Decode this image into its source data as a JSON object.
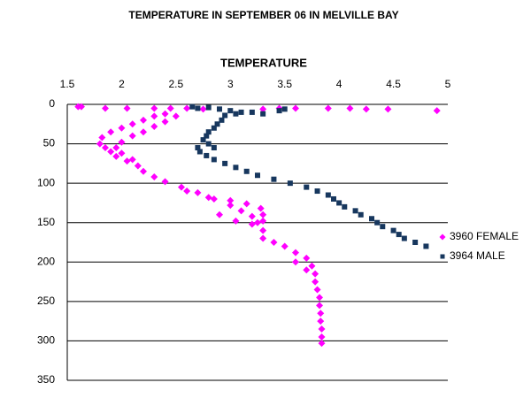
{
  "chart_data": {
    "type": "scatter",
    "title": "TEMPERATURE IN SEPTEMBER 06 IN MELVILLE BAY",
    "x_label": "TEMPERATURE",
    "xlim": [
      1.5,
      5
    ],
    "xticks": [
      1.5,
      2,
      2.5,
      3,
      3.5,
      4,
      4.5,
      5
    ],
    "ylim": [
      0,
      350
    ],
    "yticks": [
      0,
      50,
      100,
      150,
      200,
      250,
      300,
      350
    ],
    "y_inverted": true,
    "x_axis_position": "top",
    "grid": true,
    "legend": "right",
    "series": [
      {
        "name": "3960 FEMALE",
        "color": "#ff00ff",
        "marker": "diamond",
        "x": [
          1.6,
          1.63,
          1.85,
          2.05,
          2.3,
          2.45,
          2.6,
          2.75,
          3.3,
          3.45,
          3.6,
          3.9,
          4.1,
          4.25,
          4.45,
          4.9,
          2.4,
          2.3,
          2.2,
          2.1,
          2.0,
          1.9,
          1.82,
          1.8,
          1.85,
          2.5,
          2.4,
          2.3,
          2.2,
          2.1,
          2.0,
          1.95,
          2.0,
          2.1,
          2.15,
          2.2,
          2.3,
          2.4,
          2.55,
          2.7,
          2.85,
          3.0,
          3.1,
          3.2,
          3.25,
          3.3,
          3.3,
          3.4,
          3.5,
          3.6,
          3.7,
          3.75,
          3.78,
          3.78,
          3.8,
          3.82,
          3.82,
          3.83,
          3.83,
          3.84,
          3.84,
          3.84,
          2.6,
          2.8,
          3.0,
          3.15,
          3.28,
          3.3,
          3.3,
          3.2,
          3.05,
          2.9,
          1.9,
          1.95,
          2.05,
          3.6,
          3.7
        ],
        "values": [
          3,
          3,
          5,
          5,
          5,
          5,
          5,
          6,
          6,
          5,
          5,
          5,
          5,
          6,
          6,
          8,
          12,
          15,
          20,
          25,
          30,
          35,
          42,
          50,
          55,
          15,
          22,
          28,
          35,
          40,
          48,
          55,
          62,
          70,
          78,
          85,
          92,
          98,
          105,
          112,
          120,
          128,
          135,
          142,
          150,
          160,
          170,
          175,
          180,
          188,
          195,
          205,
          215,
          225,
          235,
          245,
          255,
          265,
          275,
          285,
          295,
          303,
          110,
          118,
          122,
          126,
          132,
          140,
          148,
          152,
          148,
          140,
          60,
          66,
          72,
          200,
          210
        ]
      },
      {
        "name": "3964 MALE",
        "color": "#17375e",
        "marker": "square",
        "x": [
          2.65,
          2.7,
          2.8,
          2.9,
          3.0,
          3.1,
          3.2,
          3.3,
          3.45,
          3.5,
          3.05,
          2.95,
          2.92,
          2.88,
          2.85,
          2.8,
          2.78,
          2.75,
          2.8,
          2.85,
          2.7,
          2.72,
          2.78,
          2.85,
          2.95,
          3.05,
          3.15,
          3.25,
          3.4,
          3.55,
          3.7,
          3.8,
          3.9,
          3.95,
          4.0,
          4.05,
          4.15,
          4.2,
          4.3,
          4.35,
          4.4,
          4.5,
          4.55,
          4.6,
          4.7,
          4.8
        ],
        "values": [
          3,
          5,
          4,
          6,
          8,
          10,
          10,
          12,
          8,
          6,
          12,
          14,
          20,
          25,
          30,
          35,
          40,
          45,
          50,
          55,
          55,
          60,
          65,
          70,
          75,
          80,
          85,
          90,
          95,
          100,
          105,
          110,
          115,
          120,
          125,
          130,
          135,
          140,
          145,
          150,
          155,
          160,
          165,
          170,
          175,
          180
        ]
      }
    ]
  }
}
